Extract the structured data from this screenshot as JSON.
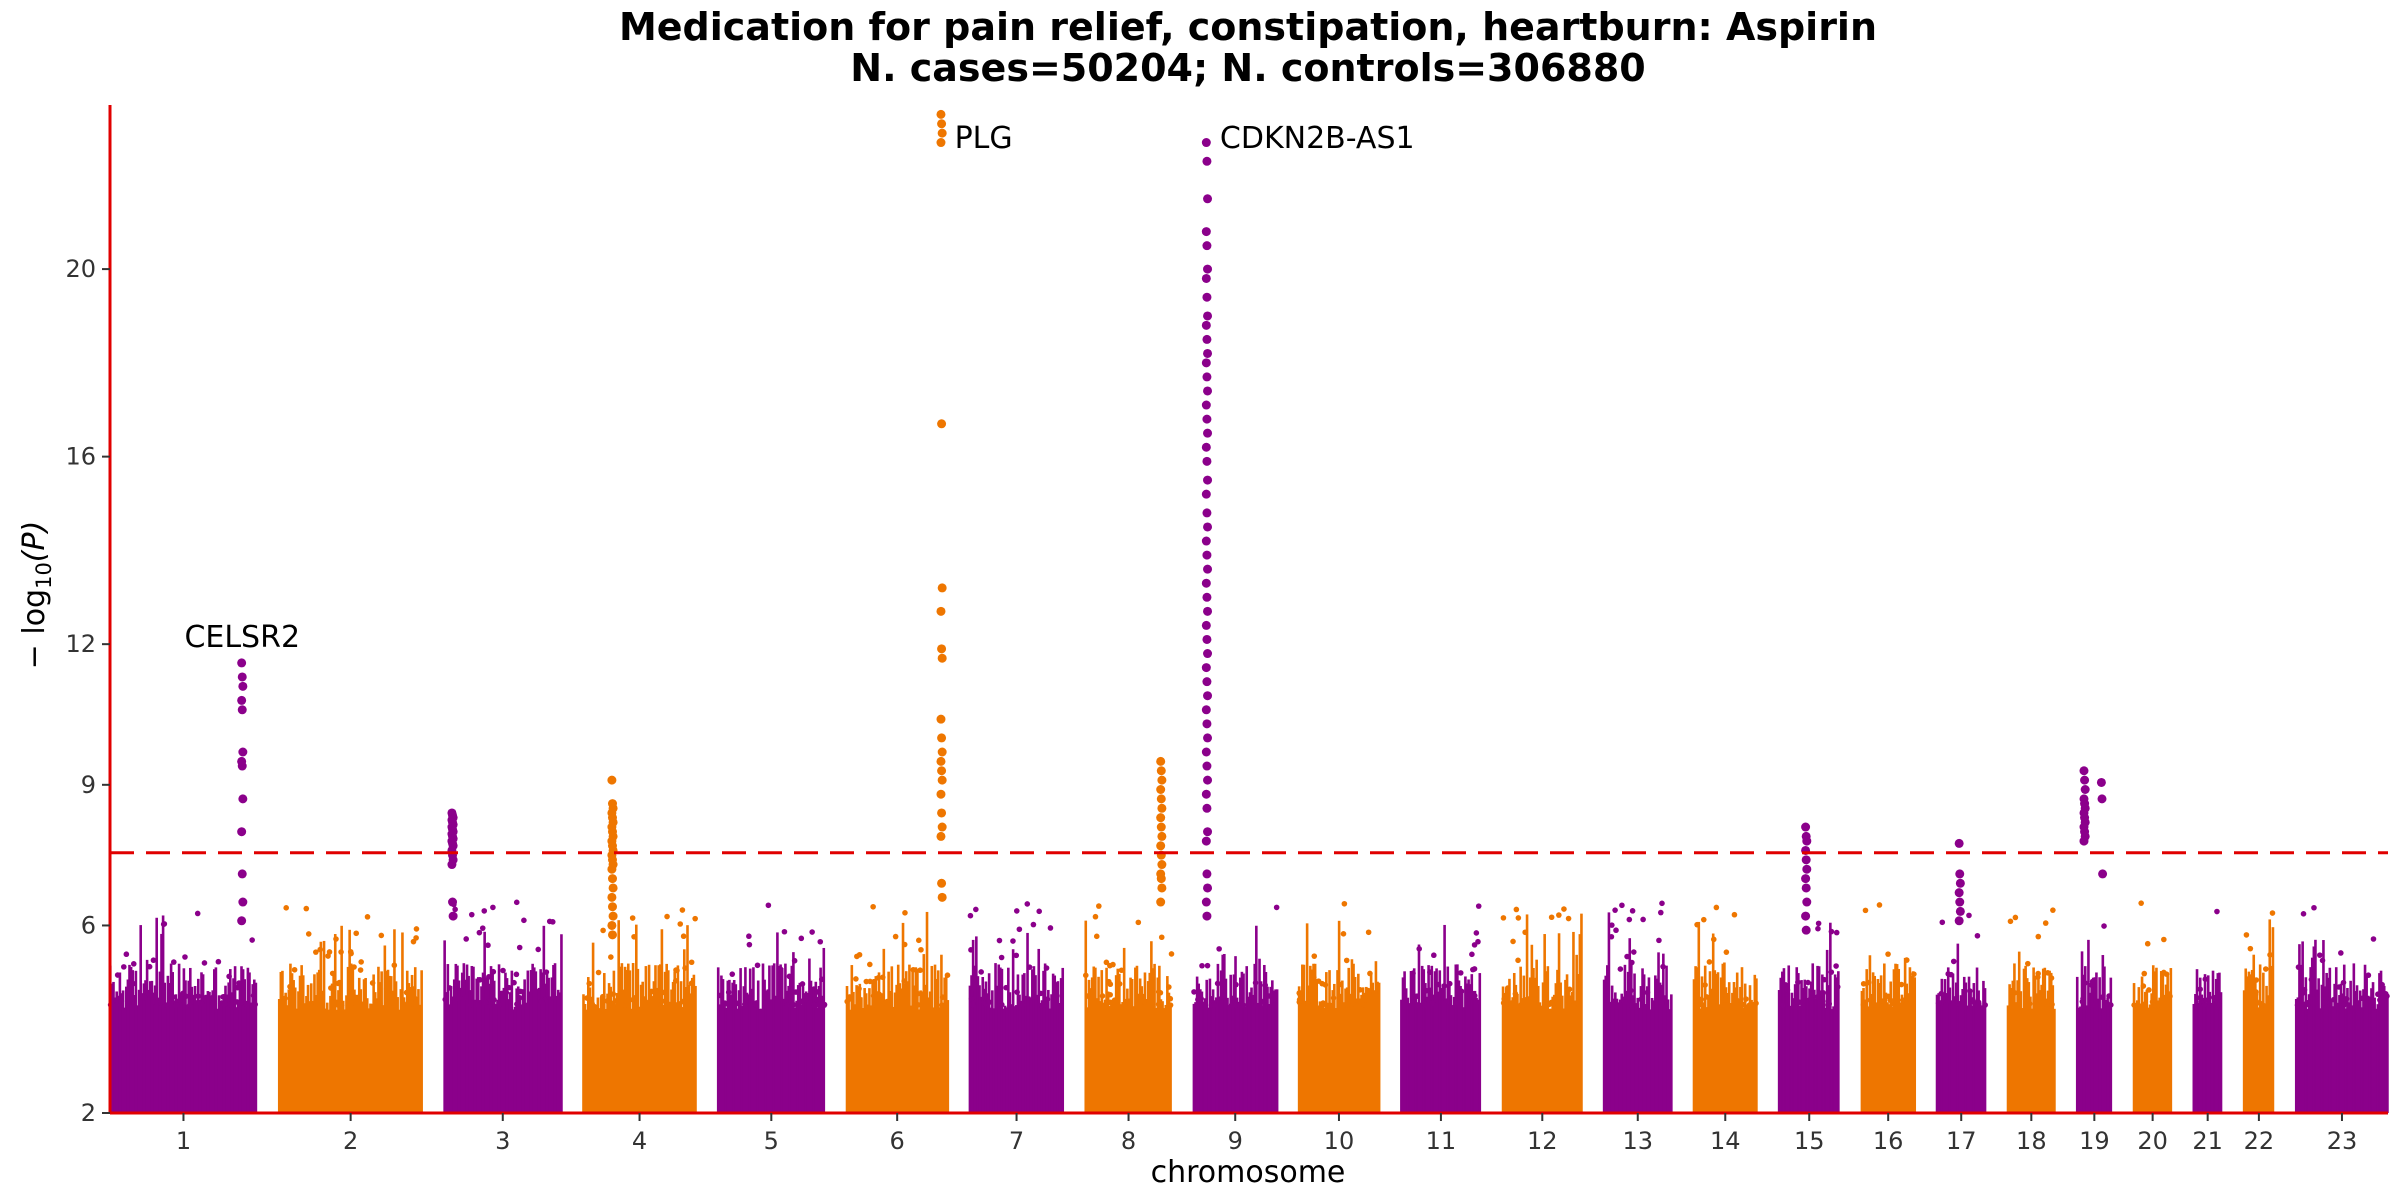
{
  "chart_data": {
    "type": "scatter",
    "title_line1": "Medication for pain relief, constipation, heartburn: Aspirin",
    "title_line2": "N. cases=50204; N. controls=306880",
    "xlabel": "chromosome",
    "ylabel_main": "− log",
    "ylabel_sub": "10",
    "ylabel_var": "(P)",
    "ylim": [
      2,
      23.5
    ],
    "yticks": [
      2,
      6,
      9,
      12,
      16,
      20
    ],
    "significance_threshold": 7.55,
    "colors": {
      "purple": "#8b008b",
      "orange": "#ee7600",
      "axis": "#e00000",
      "threshold": "#e00000"
    },
    "chromosomes": [
      {
        "label": "1",
        "length": 249,
        "color": "purple"
      },
      {
        "label": "2",
        "length": 243,
        "color": "orange"
      },
      {
        "label": "3",
        "length": 198,
        "color": "purple"
      },
      {
        "label": "4",
        "length": 191,
        "color": "orange"
      },
      {
        "label": "5",
        "length": 181,
        "color": "purple"
      },
      {
        "label": "6",
        "length": 171,
        "color": "orange"
      },
      {
        "label": "7",
        "length": 159,
        "color": "purple"
      },
      {
        "label": "8",
        "length": 146,
        "color": "orange"
      },
      {
        "label": "9",
        "length": 141,
        "color": "purple"
      },
      {
        "label": "10",
        "length": 136,
        "color": "orange"
      },
      {
        "label": "11",
        "length": 135,
        "color": "purple"
      },
      {
        "label": "12",
        "length": 134,
        "color": "orange"
      },
      {
        "label": "13",
        "length": 115,
        "color": "purple"
      },
      {
        "label": "14",
        "length": 107,
        "color": "orange"
      },
      {
        "label": "15",
        "length": 103,
        "color": "purple"
      },
      {
        "label": "16",
        "length": 90,
        "color": "orange"
      },
      {
        "label": "17",
        "length": 83,
        "color": "purple"
      },
      {
        "label": "18",
        "length": 80,
        "color": "orange"
      },
      {
        "label": "19",
        "length": 59,
        "color": "purple"
      },
      {
        "label": "20",
        "length": 64,
        "color": "orange"
      },
      {
        "label": "21",
        "length": 48,
        "color": "purple"
      },
      {
        "label": "22",
        "length": 51,
        "color": "orange"
      },
      {
        "label": "23",
        "length": 156,
        "color": "purple"
      }
    ],
    "peaks": [
      {
        "chr": "1",
        "pos_frac": 0.9,
        "color": "purple",
        "values": [
          11.6,
          11.3,
          11.1,
          10.8,
          10.6,
          9.7,
          9.5,
          9.4,
          8.7,
          8.0,
          7.1,
          6.5,
          6.1
        ],
        "label": "CELSR2"
      },
      {
        "chr": "3",
        "pos_frac": 0.07,
        "color": "purple",
        "values": [
          8.4,
          8.35,
          8.3,
          8.25,
          8.2,
          8.15,
          8.1,
          8.05,
          8.0,
          7.95,
          7.9,
          7.85,
          7.8,
          7.75,
          7.7,
          7.6,
          7.5,
          7.4,
          7.3,
          6.5,
          6.2
        ]
      },
      {
        "chr": "4",
        "pos_frac": 0.26,
        "color": "orange",
        "values": [
          9.1,
          8.6,
          8.5,
          8.4,
          8.3,
          8.2,
          8.1,
          8.0,
          7.9,
          7.8,
          7.7,
          7.6,
          7.5,
          7.4,
          7.3,
          7.2,
          7.0,
          6.8,
          6.6,
          6.4,
          6.2,
          6.0,
          5.8
        ]
      },
      {
        "chr": "6",
        "pos_frac": 0.94,
        "color": "orange",
        "values": [
          23.3,
          23.1,
          22.9,
          22.7,
          16.7,
          13.2,
          12.7,
          11.9,
          11.7,
          10.4,
          10.0,
          9.7,
          9.5,
          9.3,
          9.1,
          8.8,
          8.4,
          8.1,
          7.9,
          6.9,
          6.6
        ],
        "label": "PLG",
        "label_value": 22.8
      },
      {
        "chr": "8",
        "pos_frac": 0.88,
        "color": "orange",
        "values": [
          9.5,
          9.3,
          9.1,
          8.9,
          8.7,
          8.5,
          8.3,
          8.1,
          7.9,
          7.7,
          7.5,
          7.3,
          7.1,
          7.0,
          6.8,
          6.5
        ]
      },
      {
        "chr": "9",
        "pos_frac": 0.16,
        "color": "purple",
        "values": [
          22.7,
          22.3,
          21.5,
          20.8,
          20.5,
          20.0,
          19.8,
          19.4,
          19.0,
          18.8,
          18.5,
          18.2,
          18.0,
          17.7,
          17.4,
          17.1,
          16.8,
          16.5,
          16.2,
          15.9,
          15.5,
          15.2,
          14.8,
          14.5,
          14.2,
          13.9,
          13.6,
          13.3,
          13.0,
          12.7,
          12.4,
          12.1,
          11.8,
          11.5,
          11.2,
          10.9,
          10.6,
          10.3,
          10.0,
          9.7,
          9.4,
          9.1,
          8.8,
          8.5,
          8.0,
          7.8,
          7.1,
          6.8,
          6.5,
          6.2
        ],
        "label": "CDKN2B-AS1",
        "label_value": 22.8
      },
      {
        "chr": "15",
        "pos_frac": 0.45,
        "color": "purple",
        "values": [
          8.1,
          7.9,
          7.8,
          7.6,
          7.4,
          7.2,
          7.0,
          6.8,
          6.5,
          6.2,
          5.9
        ]
      },
      {
        "chr": "17",
        "pos_frac": 0.47,
        "color": "purple",
        "values": [
          7.75,
          7.1,
          6.9,
          6.7,
          6.5,
          6.3,
          6.1
        ]
      },
      {
        "chr": "19",
        "pos_frac": 0.22,
        "color": "purple",
        "values": [
          9.3,
          9.1,
          8.9,
          8.7,
          8.6,
          8.5,
          8.4,
          8.3,
          8.2,
          8.1,
          8.0,
          7.9,
          7.8
        ]
      },
      {
        "chr": "19",
        "pos_frac": 0.72,
        "color": "purple",
        "values": [
          9.05,
          8.7,
          7.1
        ]
      }
    ]
  }
}
